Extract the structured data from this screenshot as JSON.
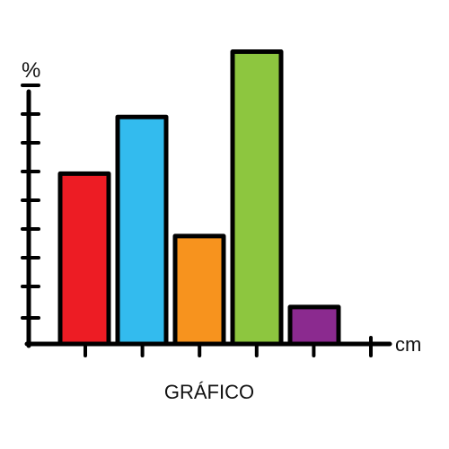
{
  "chart_data": {
    "type": "bar",
    "title": "GRÁFICO",
    "xlabel": "cm",
    "ylabel": "%",
    "values": [
      6,
      8,
      3.8,
      10.3,
      1.3
    ],
    "colors": [
      "#ed1c24",
      "#33bbee",
      "#f7931e",
      "#8dc63f",
      "#8b2a8f"
    ],
    "y_ticks": 9,
    "x_ticks": 6,
    "grid": false,
    "legend": "none"
  }
}
